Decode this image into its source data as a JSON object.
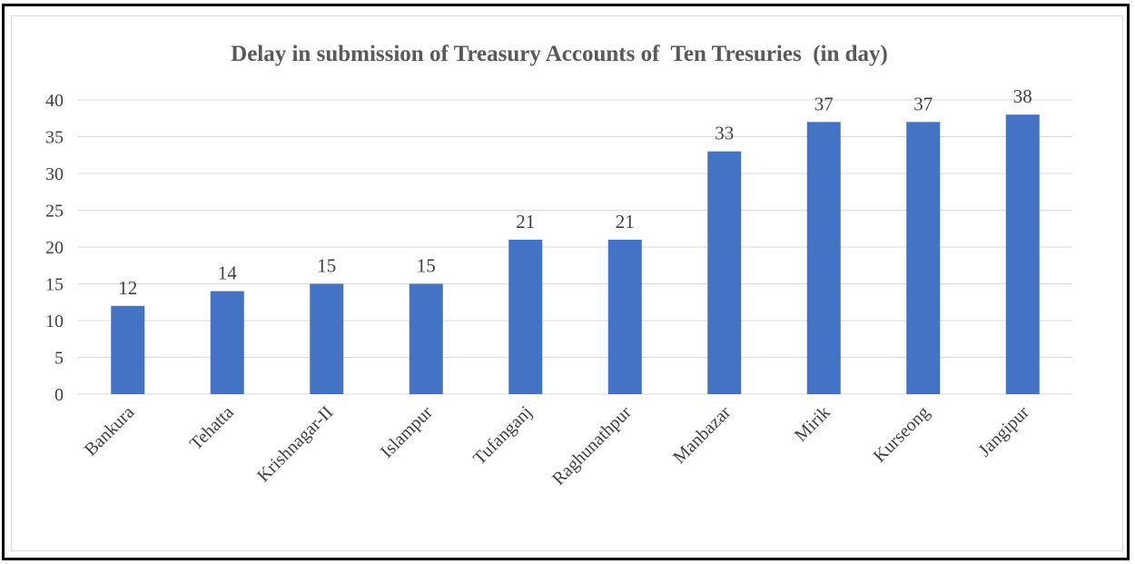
{
  "chart_data": {
    "type": "bar",
    "title": "Delay in submission of Treasury Accounts of  Ten Tresuries  (in day)",
    "xlabel": "",
    "ylabel": "",
    "categories": [
      "Bankura",
      "Tehatta",
      "Krishnagar-II",
      "Islampur",
      "Tufanganj",
      "Raghunathpur",
      "Manbazar",
      "Mirik",
      "Kurseong",
      "Jangipur"
    ],
    "values": [
      12,
      14,
      15,
      15,
      21,
      21,
      33,
      37,
      37,
      38
    ],
    "ylim": [
      0,
      40
    ],
    "yticks": [
      0,
      5,
      10,
      15,
      20,
      25,
      30,
      35,
      40
    ],
    "grid": true,
    "legend": "none",
    "data_labels": true,
    "colors": {
      "bar": "#4472c4",
      "grid": "#d9d9d9",
      "axis": "#d9d9d9"
    }
  }
}
